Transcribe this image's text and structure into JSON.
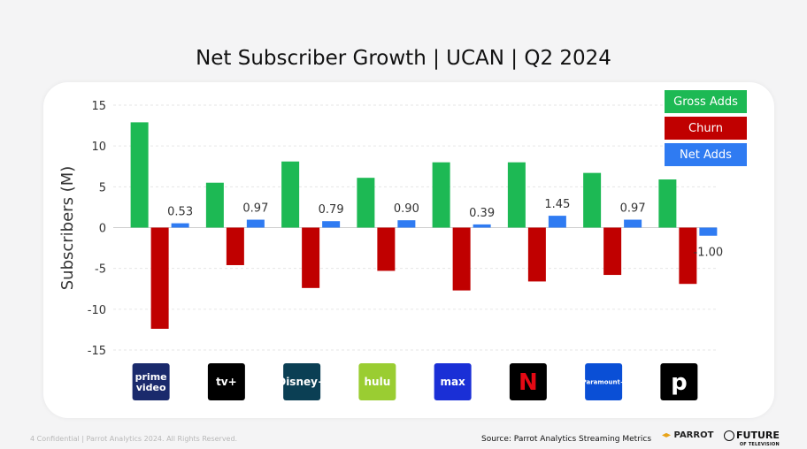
{
  "title": "Net Subscriber Growth | UCAN | Q2 2024",
  "footer": {
    "confidential": "4  Confidential  |  Parrot Analytics 2024. All Rights Reserved.",
    "source": "Source: Parrot Analytics Streaming Metrics",
    "parrot_logo": "PARROT",
    "fot_logo": "FUTURE",
    "fot_logo_sub": "OF TELEVISION"
  },
  "legend": [
    {
      "name": "Gross Adds",
      "color": "#1db954"
    },
    {
      "name": "Churn",
      "color": "#c00000"
    },
    {
      "name": "Net Adds",
      "color": "#2f7bf2"
    }
  ],
  "chart_data": {
    "type": "bar",
    "title": "Net Subscriber Growth | UCAN | Q2 2024",
    "ylabel": "Subscribers (M)",
    "xlabel": "",
    "ylim": [
      -15,
      15
    ],
    "yticks": [
      15,
      10,
      5,
      0,
      -5,
      -10,
      -15
    ],
    "ytick_labels": [
      "15",
      "10",
      "5",
      "0",
      "-5",
      "-10",
      "-15"
    ],
    "grid": true,
    "legend_position": "top-right",
    "categories": [
      "Prime Video",
      "Apple TV+",
      "Disney+",
      "Hulu",
      "Max",
      "Netflix",
      "Paramount+",
      "Peacock"
    ],
    "series": [
      {
        "name": "Gross Adds",
        "color": "#1db954",
        "values": [
          12.9,
          5.5,
          8.1,
          6.1,
          8.0,
          8.0,
          6.7,
          5.9
        ]
      },
      {
        "name": "Churn",
        "color": "#c00000",
        "values": [
          -12.4,
          -4.6,
          -7.4,
          -5.3,
          -7.7,
          -6.6,
          -5.8,
          -6.9
        ]
      },
      {
        "name": "Net Adds",
        "color": "#2f7bf2",
        "values": [
          0.53,
          0.97,
          0.79,
          0.9,
          0.39,
          1.45,
          0.97,
          -1.0
        ]
      }
    ],
    "data_labels": [
      "0.53",
      "0.97",
      "0.79",
      "0.90",
      "0.39",
      "1.45",
      "0.97",
      "-1.00"
    ]
  },
  "logos": [
    {
      "name": "prime-video-logo",
      "bg": "#1a2a6c",
      "fg": "#ffffff",
      "line1": "prime",
      "line2": "video"
    },
    {
      "name": "apple-tv-logo",
      "bg": "#000000",
      "fg": "#ffffff",
      "line1": "tv+",
      "line2": ""
    },
    {
      "name": "disney-plus-logo",
      "bg": "#0b3f54",
      "fg": "#ffffff",
      "line1": "Disney+",
      "line2": ""
    },
    {
      "name": "hulu-logo",
      "bg": "#9acd32",
      "fg": "#ffffff",
      "line1": "hulu",
      "line2": ""
    },
    {
      "name": "max-logo",
      "bg": "#1a2fd6",
      "fg": "#ffffff",
      "line1": "max",
      "line2": ""
    },
    {
      "name": "netflix-logo",
      "bg": "#000000",
      "fg": "#e50914",
      "line1": "N",
      "line2": ""
    },
    {
      "name": "paramount-plus-logo",
      "bg": "#0a4fd6",
      "fg": "#ffffff",
      "line1": "Paramount+",
      "line2": ""
    },
    {
      "name": "peacock-logo",
      "bg": "#000000",
      "fg": "#ffffff",
      "line1": "p",
      "line2": ""
    }
  ]
}
